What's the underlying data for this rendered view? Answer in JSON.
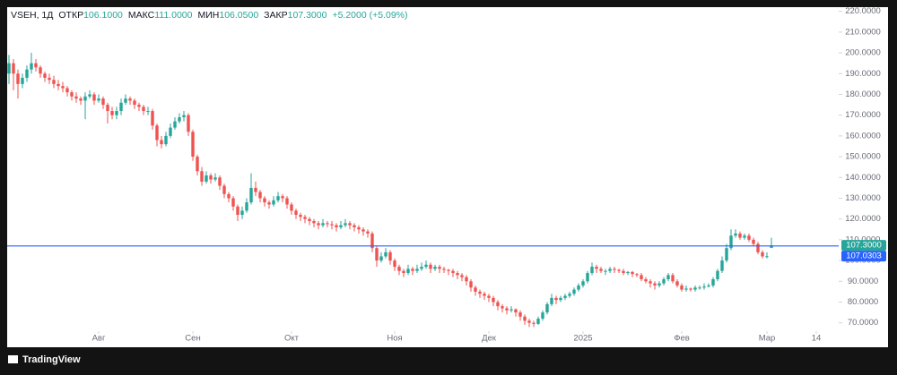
{
  "chart_data": {
    "type": "candlestick",
    "symbol": "VSEH, 1Д",
    "ohlc_legend": [
      {
        "label": "ОТКР",
        "value": "106.1000"
      },
      {
        "label": "МАКС",
        "value": "111.0000"
      },
      {
        "label": "МИН",
        "value": "106.0500"
      },
      {
        "label": "ЗАКР",
        "value": "107.3000"
      }
    ],
    "change": "+5.2000 (+5.09%)",
    "up_color": "#26a69a",
    "down_color": "#ef5350",
    "xlim": [
      -0.4,
      185
    ],
    "xticks": [
      {
        "value": 20,
        "label": "Авг"
      },
      {
        "value": 41,
        "label": "Сен"
      },
      {
        "value": 63,
        "label": "Окт"
      },
      {
        "value": 86,
        "label": "Ноя"
      },
      {
        "value": 107,
        "label": "Дек"
      },
      {
        "value": 128,
        "label": "2025"
      },
      {
        "value": 150,
        "label": "Фев"
      },
      {
        "value": 169,
        "label": "Мар"
      },
      {
        "value": 180,
        "label": "14"
      }
    ],
    "ylim": [
      66,
      222
    ],
    "yticks": [
      {
        "value": 70,
        "label": "70.0000"
      },
      {
        "value": 80,
        "label": "80.0000"
      },
      {
        "value": 90,
        "label": "90.0000"
      },
      {
        "value": 100,
        "label": "100.0000"
      },
      {
        "value": 110,
        "label": "110.0000"
      },
      {
        "value": 120,
        "label": "120.0000"
      },
      {
        "value": 130,
        "label": "130.0000"
      },
      {
        "value": 140,
        "label": "140.0000"
      },
      {
        "value": 150,
        "label": "150.0000"
      },
      {
        "value": 160,
        "label": "160.0000"
      },
      {
        "value": 170,
        "label": "170.0000"
      },
      {
        "value": 180,
        "label": "180.0000"
      },
      {
        "value": 190,
        "label": "190.0000"
      },
      {
        "value": 200,
        "label": "200.0000"
      },
      {
        "value": 210,
        "label": "210.0000"
      },
      {
        "value": 220,
        "label": "220.0000"
      }
    ],
    "last_price": {
      "value": 107.3,
      "label": "107.3000"
    },
    "price_line": {
      "value": 107.0303,
      "label": "107.0303",
      "color": "#2962ff"
    },
    "open": [
      190,
      195,
      190,
      185,
      188,
      192,
      195,
      193,
      190,
      188,
      187,
      185,
      184,
      183,
      181,
      179,
      178,
      177,
      179,
      180,
      177,
      178,
      175,
      172,
      170,
      172,
      176,
      178,
      177,
      175,
      174,
      172,
      172,
      165,
      158,
      156,
      160,
      164,
      167,
      169,
      170,
      162,
      150,
      143,
      138,
      141,
      139,
      140,
      136,
      132,
      130,
      126,
      122,
      124,
      128,
      135,
      133,
      130,
      128,
      127,
      129,
      131,
      130,
      127,
      124,
      122,
      121,
      120,
      119,
      118,
      117,
      118,
      117.5,
      117,
      116,
      117,
      118,
      117,
      116,
      115,
      114,
      113,
      106,
      100,
      102,
      104,
      100,
      97,
      95,
      94,
      96,
      95,
      96,
      97,
      98,
      96,
      97,
      96,
      95.5,
      95,
      94,
      93,
      92,
      90,
      87,
      85,
      84,
      83,
      82,
      80,
      78,
      77,
      76,
      76.5,
      75,
      73,
      71,
      70,
      69.5,
      72,
      75,
      79,
      82,
      81,
      82,
      83,
      84,
      86,
      88,
      90,
      94,
      97,
      96,
      95,
      95,
      96,
      95.5,
      95,
      94,
      94.5,
      93.5,
      93,
      91,
      90,
      89,
      88,
      89,
      91,
      93,
      90,
      88,
      86,
      86.5,
      86,
      87,
      87,
      87.5,
      88,
      91,
      95,
      100,
      106,
      112,
      113,
      111,
      112,
      110,
      108,
      104,
      102,
      106.1
    ],
    "high": [
      199,
      197,
      192,
      190,
      194,
      200,
      197,
      194,
      191,
      190,
      189,
      187,
      186,
      184,
      182,
      181,
      179,
      181,
      182,
      181,
      180,
      179,
      176,
      174,
      174,
      178,
      180,
      179,
      178,
      176,
      175,
      174,
      173,
      166,
      160,
      162,
      166,
      169,
      171,
      172,
      171,
      163,
      151,
      145,
      143,
      142,
      142,
      141,
      137,
      133,
      131,
      127,
      126,
      130,
      142,
      138,
      134,
      131,
      129,
      131,
      133,
      132,
      131,
      128,
      125,
      123,
      122,
      121,
      120,
      119,
      120,
      119,
      119,
      118,
      119,
      120,
      119,
      118,
      117,
      116,
      115,
      114,
      107,
      104,
      106,
      105,
      101,
      98,
      96,
      98,
      97,
      98,
      99,
      100,
      99,
      98,
      98,
      97,
      96,
      96,
      95,
      94,
      93,
      91,
      88,
      86,
      85,
      84,
      83,
      81,
      79,
      78,
      78,
      77,
      76,
      74,
      72,
      71,
      73,
      76,
      80,
      84,
      83,
      83,
      84,
      85,
      87,
      89,
      91,
      95,
      99,
      98,
      97,
      96,
      97,
      97,
      96,
      96,
      95,
      95,
      94,
      94,
      92,
      91,
      90,
      90,
      92,
      94,
      94,
      91,
      89,
      88,
      87,
      88,
      88,
      89,
      89,
      92,
      96,
      102,
      108,
      115,
      115,
      114,
      113,
      113,
      111,
      109,
      105,
      104,
      111
    ],
    "low": [
      185,
      182,
      178,
      183,
      186,
      190,
      191,
      188,
      186,
      185,
      183,
      182,
      181,
      179,
      177,
      176,
      175,
      168,
      178,
      175,
      176,
      173,
      166,
      168,
      168,
      170,
      175,
      175,
      173,
      172,
      170,
      170,
      163,
      155,
      154,
      155,
      159,
      163,
      166,
      167,
      160,
      148,
      141,
      136,
      137,
      137,
      138,
      134,
      130,
      128,
      124,
      119,
      120,
      123,
      127,
      131,
      128,
      126,
      125,
      126,
      128,
      128,
      125,
      122,
      120,
      119,
      118,
      117,
      116,
      115,
      116,
      116,
      115,
      114,
      115,
      116,
      115,
      114,
      113,
      112,
      111,
      104,
      97,
      99,
      101,
      98,
      95,
      93,
      92,
      93,
      93,
      94,
      95,
      96,
      94,
      95,
      94,
      94,
      93,
      92,
      91,
      90,
      88,
      85,
      83,
      82,
      81,
      80,
      78,
      76,
      75,
      74,
      75,
      73,
      71,
      69,
      68,
      68,
      69,
      71,
      74,
      78,
      79,
      80,
      81,
      82,
      83,
      85,
      87,
      89,
      93,
      94,
      94,
      93,
      94,
      94,
      94,
      93,
      93,
      92,
      92,
      90,
      89,
      87,
      86,
      87,
      88,
      90,
      89,
      87,
      85,
      85,
      85,
      85,
      86,
      86,
      87,
      87,
      90,
      94,
      99,
      105,
      111,
      110,
      110,
      109,
      107,
      103,
      101,
      101,
      106.05
    ],
    "close": [
      195,
      190,
      185,
      188,
      192,
      195,
      193,
      190,
      188,
      187,
      185,
      184,
      183,
      181,
      179,
      178,
      177,
      179,
      180,
      177,
      178,
      175,
      172,
      170,
      172,
      176,
      178,
      177,
      175,
      174,
      172,
      172,
      165,
      158,
      156,
      160,
      164,
      167,
      169,
      170,
      162,
      150,
      143,
      138,
      141,
      139,
      140,
      136,
      132,
      130,
      126,
      122,
      124,
      128,
      135,
      133,
      130,
      128,
      127,
      129,
      131,
      130,
      127,
      124,
      122,
      121,
      120,
      119,
      118,
      117,
      118,
      117.5,
      117,
      116,
      117,
      118,
      117,
      116,
      115,
      114,
      113,
      106,
      100,
      102,
      104,
      100,
      97,
      95,
      94,
      96,
      95,
      96,
      97,
      98,
      96,
      97,
      96,
      95.5,
      95,
      94,
      93,
      92,
      90,
      87,
      85,
      84,
      83,
      82,
      80,
      78,
      77,
      76,
      76.5,
      75,
      73,
      71,
      70,
      69.5,
      72,
      75,
      79,
      82,
      81,
      82,
      83,
      84,
      86,
      88,
      90,
      94,
      97,
      96,
      95,
      95,
      96,
      95.5,
      95,
      94,
      94.5,
      93.5,
      93,
      91,
      90,
      89,
      88,
      89,
      91,
      93,
      90,
      88,
      86,
      86.5,
      86,
      87,
      87,
      87.5,
      88,
      91,
      95,
      100,
      106,
      112,
      113,
      111,
      112,
      110,
      108,
      104,
      102,
      102.1,
      107.3
    ]
  }
}
